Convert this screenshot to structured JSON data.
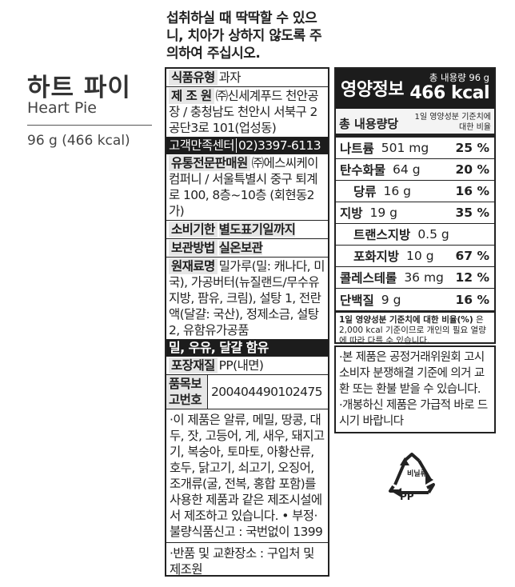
{
  "product": {
    "name_ko": "하트 파이",
    "name_en": "Heart Pie",
    "weight": "96 g (466 kcal)"
  },
  "warning": "섭취하실 때 딱딱할 수 있으니, 치아가 상하지 않도록 주의하여 주십시오.",
  "info": {
    "type_label": "식품유형",
    "type_value": "과자",
    "maker_label": "제 조 원",
    "maker_value": "㈜신세계푸드 천안공장 / 충청남도 천안시 서북구 2공단3로 101(업성동)",
    "cs_label": "고객만족센터",
    "cs_value": "02)3397-6113",
    "dist_label": "유통전문판매원",
    "dist_value": "㈜에스씨케이컴퍼니 / 서울특별시 중구 퇴계로 100, 8층~10층 (회현동2가)",
    "expiry_label": "소비기한",
    "expiry_value": "별도표기일까지",
    "storage_label": "보관방법",
    "storage_value": "실온보관",
    "ingr_label": "원재료명",
    "ingr_value": "밀가루(밀: 캐나다, 미국), 가공버터(뉴질랜드/무수유지방, 팜유, 크림), 설탕 1, 전란액(달걀: 국산), 정제소금, 설탕 2, 유함유가공품",
    "allergen": "밀, 우유, 달걀 함유",
    "pack_label": "포장재질",
    "pack_value": "PP(내면)",
    "report_label": "품목보고번호",
    "report_value": "200404490102475",
    "cross_notice": "·이 제품은 알류, 메밀, 땅콩, 대두, 잣, 고등어, 게, 새우, 돼지고기, 복숭아, 토마토, 아황산류, 호두, 닭고기, 쇠고기, 오징어, 조개류(굴, 전복, 홍합 포함)를 사용한 제품과 같은 제조시설에서 제조하고 있습니다. • 부정·불량식품신고 : 국번없이 1399",
    "return_notice": "·반품 및 교환장소 : 구입처 및 제조원"
  },
  "nutrition": {
    "title": "영양정보",
    "total_amount": "총 내용량 96 g",
    "kcal": "466 kcal",
    "sub_left": "총 내용량당",
    "sub_right": "1일 영양성분 기준치에 대한 비율",
    "rows": [
      {
        "name": "나트륨",
        "value": "501 mg",
        "pct": "25 %"
      },
      {
        "name": "탄수화물",
        "value": "64 g",
        "pct": "20 %"
      },
      {
        "name": "당류",
        "value": "16 g",
        "pct": "16 %"
      },
      {
        "name": "지방",
        "value": "19 g",
        "pct": "35 %"
      },
      {
        "name": "트랜스지방",
        "value": "0.5 g",
        "pct": ""
      },
      {
        "name": "포화지방",
        "value": "10 g",
        "pct": "67 %"
      },
      {
        "name": "콜레스테롤",
        "value": "36 mg",
        "pct": "12 %"
      },
      {
        "name": "단백질",
        "value": "9 g",
        "pct": "16 %"
      }
    ],
    "foot_bold": "1일 영양성분 기준치에 대한 비율(%)",
    "foot_text": "은 2,000 kcal 기준이므로 개인의 필요 열량에 따라 다를 수 있습니다."
  },
  "notice": [
    "·본 제품은 공정거래위원회 고시 소비자 분쟁해결 기준에 의거 교환 또는 환불 받을 수 있습니다.",
    "·개봉하신 제품은 가급적 바로 드시기 바랍니다"
  ],
  "recycle": {
    "label": "비닐류",
    "material": "PP"
  }
}
